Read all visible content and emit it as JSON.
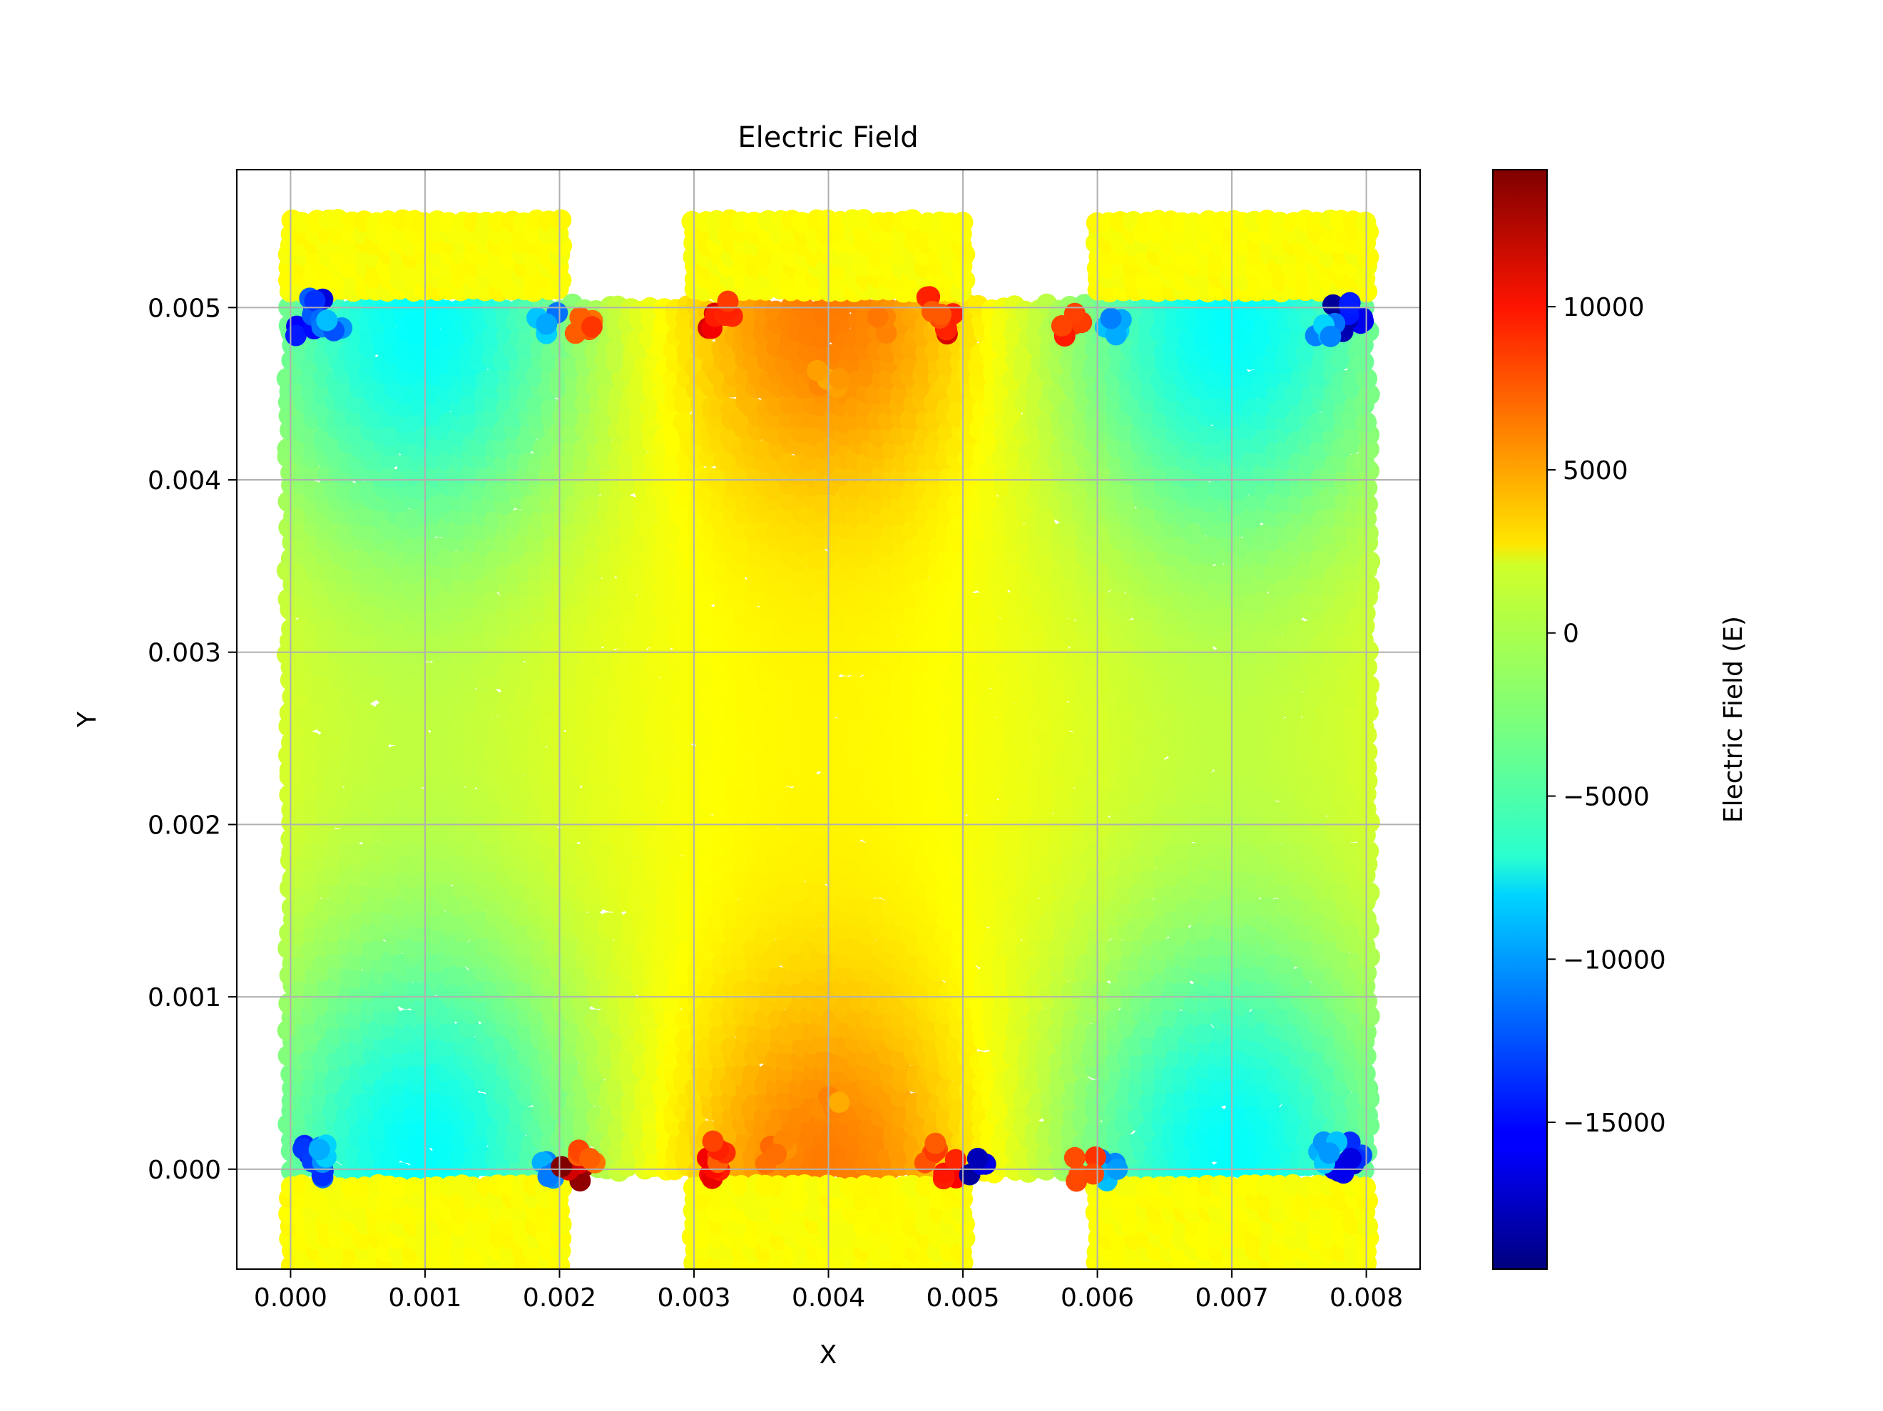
{
  "chart_data": {
    "type": "scatter",
    "title": "Electric Field",
    "xlabel": "X",
    "ylabel": "Y",
    "colorbar_label": "Electric Field (E)",
    "colormap": "jet",
    "xlim": [
      -0.0004,
      0.0084
    ],
    "ylim": [
      -0.00058,
      0.0058
    ],
    "x_ticks": [
      0.0,
      0.001,
      0.002,
      0.003,
      0.004,
      0.005,
      0.006,
      0.007,
      0.008
    ],
    "x_tick_labels": [
      "0.000",
      "0.001",
      "0.002",
      "0.003",
      "0.004",
      "0.005",
      "0.006",
      "0.007",
      "0.008"
    ],
    "y_ticks": [
      0.0,
      0.001,
      0.002,
      0.003,
      0.004,
      0.005
    ],
    "y_tick_labels": [
      "0.000",
      "0.001",
      "0.002",
      "0.003",
      "0.004",
      "0.005"
    ],
    "color_range": [
      -19500,
      14200
    ],
    "colorbar_ticks": [
      10000,
      5000,
      0,
      -5000,
      -10000,
      -15000
    ],
    "colorbar_tick_labels": [
      "10000",
      "5000",
      "0",
      "−5000",
      "−10000",
      "−15000"
    ],
    "grid": true,
    "regions": {
      "main_rect": {
        "x": [
          0.0,
          0.008
        ],
        "y": [
          0.0,
          0.005
        ],
        "e_range": [
          -6000,
          4500
        ]
      },
      "top_bands": [
        {
          "x": [
            0.0,
            0.002
          ],
          "y": [
            0.0051,
            0.0055
          ]
        },
        {
          "x": [
            0.003,
            0.005
          ],
          "y": [
            0.0051,
            0.0055
          ]
        },
        {
          "x": [
            0.006,
            0.008
          ],
          "y": [
            0.0051,
            0.0055
          ]
        }
      ],
      "bottom_bands": [
        {
          "x": [
            0.0,
            0.002
          ],
          "y": [
            -0.00055,
            -0.0001
          ]
        },
        {
          "x": [
            0.003,
            0.005
          ],
          "y": [
            -0.00055,
            -0.0001
          ]
        },
        {
          "x": [
            0.006,
            0.008
          ],
          "y": [
            -0.00055,
            -0.0001
          ]
        }
      ],
      "band_value": 1500
    },
    "hotspots": [
      {
        "x": 0.0001,
        "y": 0.0049,
        "value": -18000
      },
      {
        "x": 0.0002,
        "y": 0.005,
        "value": -16000
      },
      {
        "x": 0.0003,
        "y": 0.0049,
        "value": -12000
      },
      {
        "x": 0.0079,
        "y": 0.0049,
        "value": -17000
      },
      {
        "x": 0.0078,
        "y": 0.005,
        "value": -19000
      },
      {
        "x": 0.0077,
        "y": 0.0049,
        "value": -11000
      },
      {
        "x": 0.0001,
        "y": 0.0001,
        "value": -17000
      },
      {
        "x": 0.0002,
        "y": 0.0,
        "value": -15000
      },
      {
        "x": 0.0003,
        "y": 0.0001,
        "value": -11000
      },
      {
        "x": 0.0079,
        "y": 0.0001,
        "value": -17000
      },
      {
        "x": 0.0078,
        "y": 0.0,
        "value": -19000
      },
      {
        "x": 0.0077,
        "y": 0.0001,
        "value": -11000
      },
      {
        "x": 0.0019,
        "y": 0.0049,
        "value": -11000
      },
      {
        "x": 0.0061,
        "y": 0.0049,
        "value": -11000
      },
      {
        "x": 0.0019,
        "y": 0.0,
        "value": -11000
      },
      {
        "x": 0.0061,
        "y": 0.0,
        "value": -11000
      },
      {
        "x": 0.0022,
        "y": 0.0049,
        "value": 8000
      },
      {
        "x": 0.0021,
        "y": 0.0,
        "value": 14000
      },
      {
        "x": 0.0022,
        "y": 0.0001,
        "value": 8000
      },
      {
        "x": 0.0031,
        "y": 0.0049,
        "value": 11000
      },
      {
        "x": 0.0032,
        "y": 0.005,
        "value": 10000
      },
      {
        "x": 0.0031,
        "y": 0.0,
        "value": 11000
      },
      {
        "x": 0.0032,
        "y": 0.0001,
        "value": 9000
      },
      {
        "x": 0.0049,
        "y": 0.0049,
        "value": 11000
      },
      {
        "x": 0.0048,
        "y": 0.005,
        "value": 9000
      },
      {
        "x": 0.0049,
        "y": 0.0,
        "value": 11000
      },
      {
        "x": 0.0048,
        "y": 0.0001,
        "value": 9000
      },
      {
        "x": 0.0058,
        "y": 0.0049,
        "value": 9000
      },
      {
        "x": 0.0059,
        "y": 0.0,
        "value": 8000
      },
      {
        "x": 0.0051,
        "y": 0.0,
        "value": -18000
      },
      {
        "x": 0.004,
        "y": 0.0046,
        "value": 5500
      },
      {
        "x": 0.004,
        "y": 0.0004,
        "value": 5500
      },
      {
        "x": 0.0036,
        "y": 0.0001,
        "value": 6500
      },
      {
        "x": 0.0044,
        "y": 0.0049,
        "value": 6500
      }
    ]
  }
}
